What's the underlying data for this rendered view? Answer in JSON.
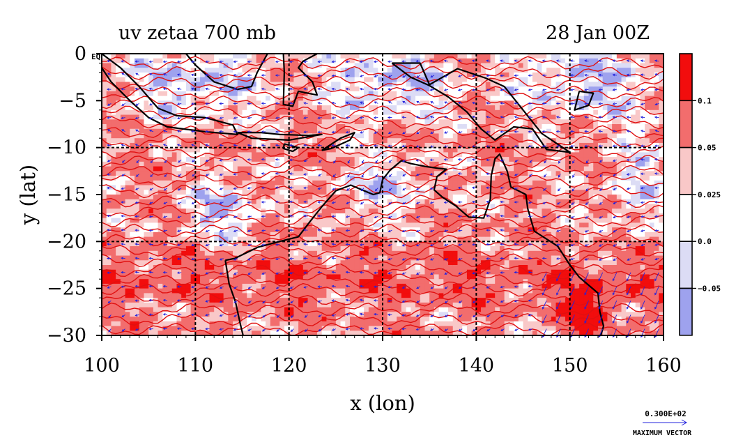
{
  "chart_data": {
    "type": "heatmap",
    "title_left": "uv zetaa 700 mb",
    "title_right": "28 Jan 00Z",
    "xlabel": "x (lon)",
    "ylabel": "y (lat)",
    "xlim": [
      100,
      160
    ],
    "ylim": [
      -30,
      0
    ],
    "x_ticks": [
      "100",
      "110",
      "120",
      "130",
      "140",
      "150",
      "160"
    ],
    "y_ticks": [
      "0 EQ",
      "−5",
      "−10",
      "−15",
      "−20",
      "−25",
      "−30"
    ],
    "colorbar": {
      "labels": [
        "0.1",
        "0.05",
        "0.025",
        "0.0",
        "−0.05"
      ],
      "bins": [
        {
          "color": "#f20d0d"
        },
        {
          "color": "#f26d6d"
        },
        {
          "color": "#f9c8c8"
        },
        {
          "color": "#ffffff"
        },
        {
          "color": "#dcdcf5"
        },
        {
          "color": "#9ea2ee"
        }
      ]
    },
    "vector_reference": {
      "value": "0.300E+02",
      "caption": "MAXIMUM VECTOR"
    },
    "grid": true,
    "colors": {
      "vector": "#2222dd",
      "coast": "#000000",
      "contour": "#e01010"
    }
  }
}
